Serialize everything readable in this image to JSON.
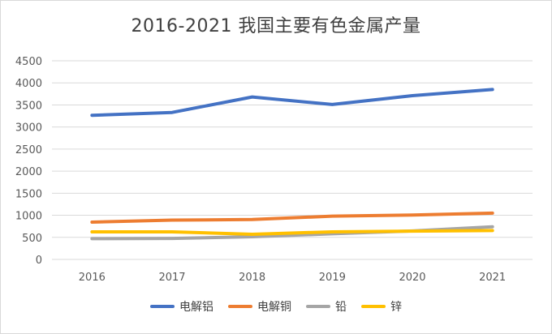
{
  "chart_data": {
    "type": "line",
    "title": "2016-2021 我国主要有色金属产量",
    "categories": [
      "2016",
      "2017",
      "2018",
      "2019",
      "2020",
      "2021"
    ],
    "ylim": [
      0,
      4500
    ],
    "yticks": [
      "0",
      "500",
      "1000",
      "1500",
      "2000",
      "2500",
      "3000",
      "3500",
      "4000",
      "4500"
    ],
    "grid": true,
    "legend_position": "bottom",
    "series": [
      {
        "name": "电解铝",
        "color": "#4472C4",
        "values": [
          3265,
          3330,
          3680,
          3510,
          3710,
          3850
        ]
      },
      {
        "name": "电解铜",
        "color": "#ED7D31",
        "values": [
          845,
          890,
          905,
          980,
          1005,
          1050
        ]
      },
      {
        "name": "铅",
        "color": "#A5A5A5",
        "values": [
          470,
          475,
          515,
          580,
          645,
          740
        ]
      },
      {
        "name": "锌",
        "color": "#FFC000",
        "values": [
          625,
          625,
          570,
          625,
          640,
          655
        ]
      }
    ]
  }
}
